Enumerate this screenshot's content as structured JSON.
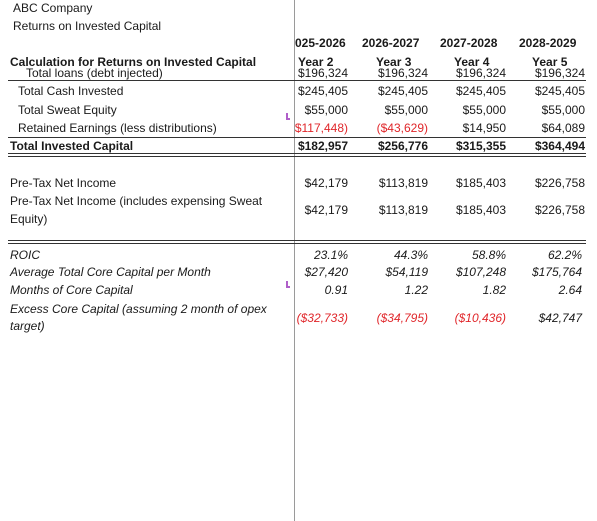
{
  "header": {
    "company": "ABC Company",
    "title": "Returns on Invested Capital"
  },
  "columns": {
    "periods": [
      "025-2026",
      "2026-2027",
      "2027-2028",
      "2028-2029"
    ],
    "years": [
      "Year 2",
      "Year 3",
      "Year 4",
      "Year 5"
    ]
  },
  "section1": {
    "heading": "Calculation for Returns on Invested Capital",
    "rows": [
      {
        "label": "Total loans (debt injected)",
        "values": [
          "$196,324",
          "$196,324",
          "$196,324",
          "$196,324"
        ]
      },
      {
        "label": "Total Cash Invested",
        "values": [
          "$245,405",
          "$245,405",
          "$245,405",
          "$245,405"
        ]
      },
      {
        "label": "Total Sweat Equity",
        "values": [
          "$55,000",
          "$55,000",
          "$55,000",
          "$55,000"
        ]
      },
      {
        "label": "Retained Earnings (less distributions)",
        "values": [
          "$117,448)",
          "($43,629)",
          "$14,950",
          "$64,089"
        ]
      }
    ],
    "total": {
      "label": "Total Invested Capital",
      "values": [
        "$182,957",
        "$256,776",
        "$315,355",
        "$364,494"
      ]
    }
  },
  "section2": {
    "rows": [
      {
        "label": "Pre-Tax Net Income",
        "values": [
          "$42,179",
          "$113,819",
          "$185,403",
          "$226,758"
        ]
      },
      {
        "label_line1": "Pre-Tax Net Income (includes expensing Sweat",
        "label_line2": "Equity)",
        "values": [
          "$42,179",
          "$113,819",
          "$185,403",
          "$226,758"
        ]
      }
    ]
  },
  "section3": {
    "rows": [
      {
        "label": "ROIC",
        "values": [
          "23.1%",
          "44.3%",
          "58.8%",
          "62.2%"
        ]
      },
      {
        "label": "Average Total Core Capital per Month",
        "values": [
          "$27,420",
          "$54,119",
          "$107,248",
          "$175,764"
        ]
      },
      {
        "label": "Months of Core Capital",
        "values": [
          "0.91",
          "1.22",
          "1.82",
          "2.64"
        ]
      },
      {
        "label_line1": "Excess Core Capital (assuming 2 month of opex",
        "label_line2": "target)",
        "values": [
          "($32,733)",
          "($34,795)",
          "($10,436)",
          "$42,747"
        ]
      }
    ]
  },
  "colors": {
    "negative": "#e0262a",
    "comment_marker": "#b05fc9"
  }
}
